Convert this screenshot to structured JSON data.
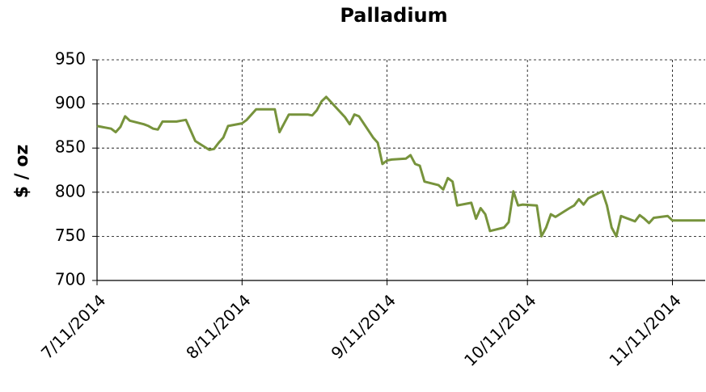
{
  "chart_data": {
    "type": "line",
    "title": "Palladium",
    "y_label": "$ / oz",
    "x": [
      "7/11/2014",
      "7/14/2014",
      "7/15/2014",
      "7/16/2014",
      "7/17/2014",
      "7/18/2014",
      "7/21/2014",
      "7/22/2014",
      "7/23/2014",
      "7/24/2014",
      "7/25/2014",
      "7/28/2014",
      "7/29/2014",
      "7/30/2014",
      "7/31/2014",
      "8/1/2014",
      "8/4/2014",
      "8/5/2014",
      "8/6/2014",
      "8/7/2014",
      "8/8/2014",
      "8/11/2014",
      "8/12/2014",
      "8/13/2014",
      "8/14/2014",
      "8/15/2014",
      "8/18/2014",
      "8/19/2014",
      "8/20/2014",
      "8/21/2014",
      "8/22/2014",
      "8/25/2014",
      "8/26/2014",
      "8/27/2014",
      "8/28/2014",
      "8/29/2014",
      "9/2/2014",
      "9/3/2014",
      "9/4/2014",
      "9/5/2014",
      "9/8/2014",
      "9/9/2014",
      "9/10/2014",
      "9/11/2014",
      "9/12/2014",
      "9/15/2014",
      "9/16/2014",
      "9/17/2014",
      "9/18/2014",
      "9/19/2014",
      "9/22/2014",
      "9/23/2014",
      "9/24/2014",
      "9/25/2014",
      "9/26/2014",
      "9/29/2014",
      "9/30/2014",
      "10/1/2014",
      "10/2/2014",
      "10/3/2014",
      "10/6/2014",
      "10/7/2014",
      "10/8/2014",
      "10/9/2014",
      "10/10/2014",
      "10/13/2014",
      "10/14/2014",
      "10/15/2014",
      "10/16/2014",
      "10/17/2014",
      "10/20/2014",
      "10/21/2014",
      "10/22/2014",
      "10/23/2014",
      "10/24/2014",
      "10/27/2014",
      "10/28/2014",
      "10/29/2014",
      "10/30/2014",
      "10/31/2014",
      "11/3/2014",
      "11/4/2014",
      "11/5/2014",
      "11/6/2014",
      "11/7/2014",
      "11/10/2014",
      "11/11/2014",
      "11/12/2014",
      "11/13/2014",
      "11/14/2014",
      "11/17/2014",
      "11/18/2014"
    ],
    "series": [
      {
        "name": "Palladium",
        "color": "#77933c",
        "values": [
          875,
          872,
          868,
          874,
          886,
          881,
          877,
          875,
          872,
          871,
          880,
          880,
          881,
          882,
          870,
          858,
          848,
          849,
          856,
          862,
          875,
          878,
          882,
          888,
          894,
          894,
          894,
          868,
          878,
          888,
          888,
          888,
          887,
          893,
          903,
          908,
          885,
          877,
          888,
          886,
          862,
          856,
          832,
          836,
          837,
          838,
          842,
          832,
          830,
          812,
          808,
          803,
          816,
          812,
          785,
          788,
          770,
          782,
          775,
          756,
          760,
          766,
          801,
          785,
          786,
          785,
          750,
          760,
          775,
          772,
          782,
          785,
          792,
          786,
          793,
          801,
          785,
          760,
          750,
          773,
          767,
          774,
          770,
          765,
          771,
          773,
          768,
          768,
          768,
          768,
          768,
          768
        ]
      }
    ],
    "xlim": [
      "7/11/2014",
      "11/18/2014"
    ],
    "xticks": [
      "7/11/2014",
      "8/11/2014",
      "9/11/2014",
      "10/11/2014",
      "11/11/2014"
    ],
    "ylim": [
      700,
      950
    ],
    "yticks": [
      700,
      750,
      800,
      850,
      900,
      950
    ],
    "grid": true
  }
}
